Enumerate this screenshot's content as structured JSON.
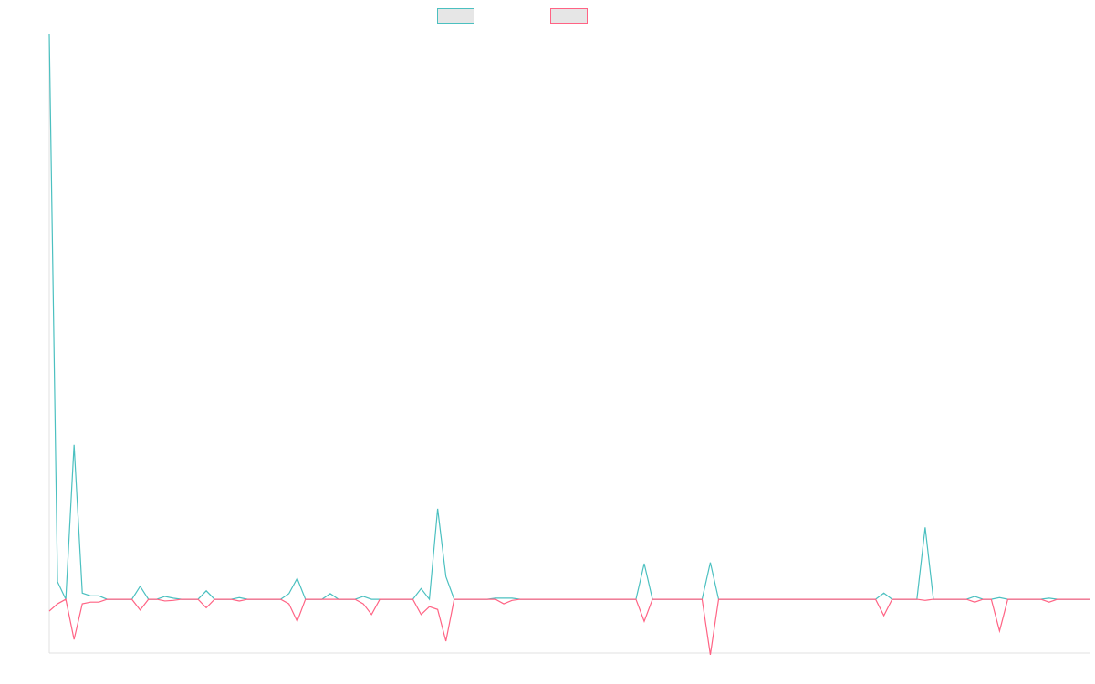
{
  "chart_data": {
    "type": "line",
    "legend": "top",
    "ylim": [
      -9.5,
      100
    ],
    "series": [
      {
        "color": "#4bc0c0",
        "values": [
          100,
          3.1,
          0,
          27.3,
          1.1,
          0.6,
          0.6,
          0,
          0,
          0,
          0,
          2.3,
          0,
          0,
          0.5,
          0.2,
          0,
          0,
          0,
          1.5,
          0,
          0,
          0,
          0.3,
          0,
          0,
          0,
          0,
          0,
          1.0,
          3.7,
          0,
          0,
          0,
          1.0,
          0,
          0,
          0,
          0.5,
          0,
          0,
          0,
          0,
          0,
          0,
          1.9,
          0,
          16,
          4,
          0,
          0,
          0,
          0,
          0,
          0.2,
          0.2,
          0.2,
          0,
          0,
          0,
          0,
          0,
          0,
          0,
          0,
          0,
          0,
          0,
          0,
          0,
          0,
          0,
          6.3,
          0,
          0,
          0,
          0,
          0,
          0,
          0,
          6.5,
          0,
          0,
          0,
          0,
          0,
          0,
          0,
          0,
          0,
          0,
          0,
          0,
          0,
          0,
          0,
          0,
          0,
          0,
          0,
          0,
          1.1,
          0,
          0,
          0,
          0,
          12.7,
          0,
          0,
          0,
          0,
          0,
          0.5,
          0,
          0,
          0.3,
          0,
          0,
          0,
          0,
          0,
          0.2,
          0,
          0,
          0,
          0,
          0
        ]
      },
      {
        "color": "#ff6384",
        "values": [
          -2.1,
          -0.8,
          0,
          -7.1,
          -0.8,
          -0.5,
          -0.5,
          0,
          0,
          0,
          0,
          -1.9,
          0,
          0,
          -0.3,
          -0.2,
          0,
          0,
          0,
          -1.5,
          0,
          0,
          0,
          -0.3,
          0,
          0,
          0,
          0,
          0,
          -0.8,
          -3.9,
          0,
          0,
          0,
          0,
          0,
          0,
          0,
          -0.8,
          -2.7,
          0,
          0,
          0,
          0,
          0,
          -2.7,
          -1.3,
          -1.8,
          -7.4,
          0,
          0,
          0,
          0,
          0,
          0,
          -0.8,
          -0.2,
          0,
          0,
          0,
          0,
          0,
          0,
          0,
          0,
          0,
          0,
          0,
          0,
          0,
          0,
          0,
          -3.9,
          0,
          0,
          0,
          0,
          0,
          0,
          0,
          -9.8,
          0,
          0,
          0,
          0,
          0,
          0,
          0,
          0,
          0,
          0,
          0,
          0,
          0,
          0,
          0,
          0,
          0,
          0,
          0,
          0,
          -2.9,
          0,
          0,
          0,
          0,
          -0.2,
          0,
          0,
          0,
          0,
          0,
          -0.5,
          0,
          0,
          -5.6,
          0,
          0,
          0,
          0,
          0,
          -0.5,
          0,
          0,
          0,
          0,
          0
        ]
      }
    ]
  }
}
